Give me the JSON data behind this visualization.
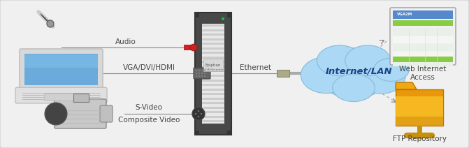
{
  "bg_color": "#e6e6e6",
  "inner_bg": "#f2f2f2",
  "text_color": "#444444",
  "solid_line_color": "#888888",
  "dashed_line_color": "#999999",
  "cloud_fill": "#a0d4f0",
  "cloud_edge": "#80b8d8",
  "cloud_text": "#1a4a8a",
  "folder_main": "#f0aa18",
  "folder_dark": "#c88010",
  "server_body": "#d8d8d8",
  "server_dark": "#404040",
  "server_mid": "#888888",
  "audio_label": "Audio",
  "vga_label": "VGA/DVI/HDMI",
  "svideo_label": "S-Video\nComposite Video",
  "ethernet_label": "Ethernet",
  "cloud_label": "Internet/LAN",
  "ftp_label": "FTP Repository",
  "web_label": "Web Internet\nAccess"
}
